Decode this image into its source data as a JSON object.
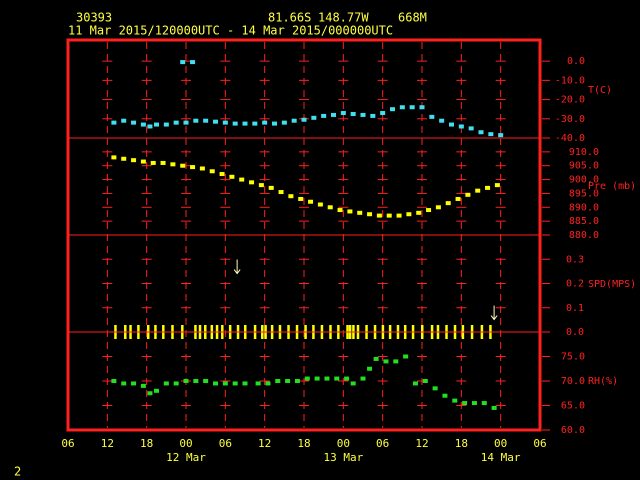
{
  "header": {
    "station": "30393",
    "latitude": "81.66S",
    "longitude": "148.77W",
    "elevation": "668M",
    "period": "11 Mar 2015/120000UTC - 14 Mar 2015/000000UTC"
  },
  "footer": "2",
  "chart_data": [
    {
      "type": "scatter",
      "ylabel": "T(C)",
      "color": "#40e0f0",
      "xlim": [
        0,
        72
      ],
      "ylim": [
        -40,
        11
      ],
      "yticks": [
        {
          "value": 0,
          "label": "0.0"
        },
        {
          "value": -10,
          "label": "-10.0"
        },
        {
          "value": -20,
          "label": "-20.0"
        },
        {
          "value": -30,
          "label": "-30.0"
        },
        {
          "value": -40,
          "label": "-40.0"
        }
      ],
      "x": [
        7,
        8.5,
        10,
        11.5,
        12.5,
        13.5,
        15,
        16.5,
        17.5,
        18,
        19,
        19.5,
        21,
        22.5,
        24,
        25.5,
        27,
        28.5,
        30,
        31.5,
        33,
        34.5,
        36,
        37.5,
        39,
        40.5,
        42,
        43.5,
        45,
        46.5,
        48,
        49.5,
        51,
        52.5,
        54,
        55.5,
        57,
        58.5,
        60,
        61.5,
        63,
        64.5,
        66
      ],
      "values": [
        -32,
        -31,
        -32,
        -33,
        -34,
        -33,
        -33,
        -32,
        -0.5,
        -32,
        -0.5,
        -31,
        -31,
        -31.5,
        -32,
        -32.5,
        -32.5,
        -32.5,
        -32,
        -32.5,
        -32,
        -31,
        -30.5,
        -29.5,
        -28.5,
        -28,
        -27,
        -27.5,
        -28,
        -28.5,
        -27,
        -25,
        -24,
        -24,
        -24,
        -29,
        -31,
        -33,
        -34,
        -35,
        -37,
        -38,
        -38.5
      ]
    },
    {
      "type": "scatter",
      "ylabel": "Pre (mb)",
      "color": "#ffff00",
      "xlim": [
        0,
        72
      ],
      "ylim": [
        880,
        915
      ],
      "yticks": [
        {
          "value": 910,
          "label": "910.0"
        },
        {
          "value": 905,
          "label": "905.0"
        },
        {
          "value": 900,
          "label": "900.0"
        },
        {
          "value": 895,
          "label": "895.0"
        },
        {
          "value": 890,
          "label": "890.0"
        },
        {
          "value": 885,
          "label": "885.0"
        },
        {
          "value": 880,
          "label": "880.0"
        }
      ],
      "x": [
        7,
        8.5,
        10,
        11.5,
        13,
        14.5,
        16,
        17.5,
        19,
        20.5,
        22,
        23.5,
        25,
        26.5,
        28,
        29.5,
        31,
        32.5,
        34,
        35.5,
        37,
        38.5,
        40,
        41.5,
        43,
        44.5,
        46,
        47.5,
        49,
        50.5,
        52,
        53.5,
        55,
        56.5,
        58,
        59.5,
        61,
        62.5,
        64,
        65.5
      ],
      "values": [
        908,
        907.5,
        907,
        906.5,
        906,
        906,
        905.5,
        905,
        904.5,
        904,
        903,
        902,
        901,
        900,
        899,
        898,
        897,
        895.5,
        894,
        893,
        892,
        891,
        890,
        889,
        888.5,
        888,
        887.5,
        887,
        887,
        887,
        887.5,
        888,
        889,
        890,
        891.5,
        893,
        894.5,
        896,
        897,
        898
      ]
    },
    {
      "type": "wind",
      "ylabel": "SPD(MPS)",
      "color": "#ffff00",
      "xlim": [
        0,
        72
      ],
      "ylim": [
        0,
        0.4
      ],
      "yticks": [
        {
          "value": 0.3,
          "label": "0.3"
        },
        {
          "value": 0.2,
          "label": "0.2"
        },
        {
          "value": 0.1,
          "label": "0.1"
        },
        {
          "value": 0,
          "label": "0.0"
        }
      ],
      "x": [
        7.2,
        8.7,
        9.5,
        10.7,
        12.2,
        13.3,
        14.5,
        15.9,
        17.4,
        19.4,
        20.1,
        20.9,
        21.9,
        22.7,
        23.5,
        24.7,
        25.9,
        27,
        28.5,
        29.6,
        30.1,
        31.1,
        32.3,
        33.6,
        34.9,
        36.2,
        37.4,
        38.7,
        40,
        41.2,
        42.6,
        43,
        43.5,
        44.2,
        45.5,
        46.8,
        48,
        49.1,
        50.3,
        51.4,
        52.6,
        54,
        55.5,
        56.4,
        57.7,
        59,
        60.2,
        61.6,
        63.1,
        64.4
      ],
      "values": [
        0,
        0,
        0,
        0,
        0,
        0,
        0,
        0,
        0,
        0,
        0,
        0,
        0,
        0,
        0,
        0,
        0,
        0,
        0,
        0,
        0,
        0,
        0,
        0,
        0,
        0,
        0,
        0,
        0,
        0,
        0,
        0,
        0,
        0,
        0,
        0,
        0,
        0,
        0,
        0,
        0,
        0,
        0,
        0,
        0,
        0,
        0,
        0,
        0,
        0
      ],
      "arrows": {
        "x": [
          25.8,
          65
        ],
        "values": [
          0.27,
          0.08
        ]
      }
    },
    {
      "type": "scatter",
      "ylabel": "RH(%)",
      "color": "#20e020",
      "xlim": [
        0,
        72
      ],
      "ylim": [
        60,
        80
      ],
      "yticks": [
        {
          "value": 75,
          "label": "75.0"
        },
        {
          "value": 70,
          "label": "70.0"
        },
        {
          "value": 65,
          "label": "65.0"
        },
        {
          "value": 60,
          "label": "60.0"
        }
      ],
      "x": [
        7,
        8.5,
        10,
        11.5,
        12.5,
        13.5,
        15,
        16.5,
        18,
        19.5,
        21,
        22.5,
        24,
        25.5,
        27,
        29,
        30.5,
        32,
        33.5,
        35,
        36.5,
        38,
        39.5,
        41,
        42.5,
        43.5,
        45,
        46,
        47,
        48.5,
        50,
        51.5,
        53,
        54.5,
        56,
        57.5,
        59,
        60.5,
        62,
        63.5,
        65
      ],
      "values": [
        70,
        69.5,
        69.5,
        69,
        67.5,
        68,
        69.5,
        69.5,
        70,
        70,
        70,
        69.5,
        69.5,
        69.5,
        69.5,
        69.5,
        69.5,
        70,
        70,
        70,
        70.5,
        70.5,
        70.5,
        70.5,
        70.5,
        69.5,
        70.5,
        72.5,
        74.5,
        74,
        74,
        75,
        69.5,
        70,
        68.5,
        67,
        66,
        65.5,
        65.5,
        65.5,
        64.5
      ],
      "xticks": [
        {
          "value": 0,
          "label": "06"
        },
        {
          "value": 6,
          "label": "12"
        },
        {
          "value": 12,
          "label": "18"
        },
        {
          "value": 18,
          "label": "00"
        },
        {
          "value": 24,
          "label": "06"
        },
        {
          "value": 30,
          "label": "12"
        },
        {
          "value": 36,
          "label": "18"
        },
        {
          "value": 42,
          "label": "00"
        },
        {
          "value": 48,
          "label": "06"
        },
        {
          "value": 54,
          "label": "12"
        },
        {
          "value": 60,
          "label": "18"
        },
        {
          "value": 66,
          "label": "00"
        },
        {
          "value": 72,
          "label": "06"
        }
      ],
      "date_labels": [
        {
          "value": 18,
          "label": "12 Mar"
        },
        {
          "value": 42,
          "label": "13 Mar"
        },
        {
          "value": 66,
          "label": "14 Mar"
        }
      ]
    }
  ]
}
